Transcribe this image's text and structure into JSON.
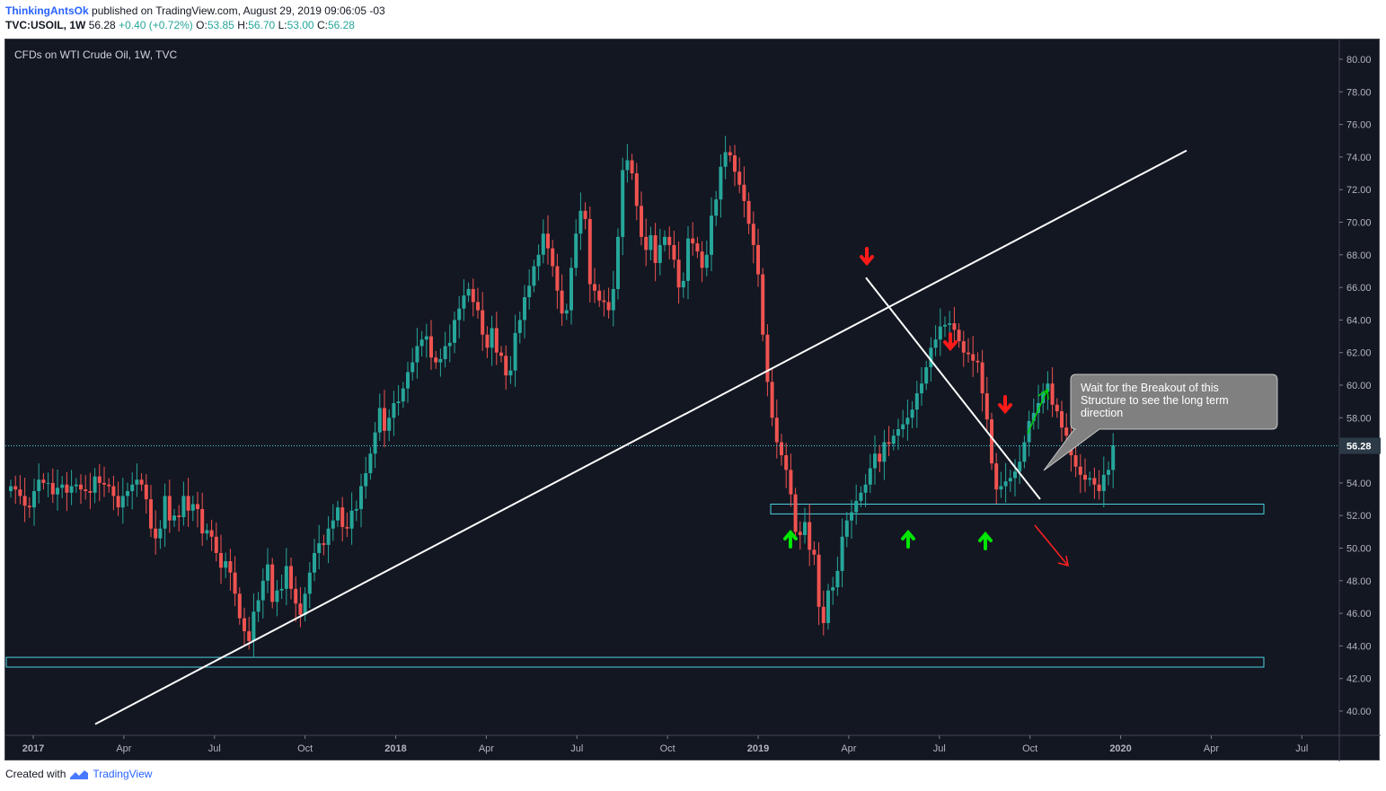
{
  "header": {
    "author": "ThinkingAntsOk",
    "published_text": "published on TradingView.com, August 29, 2019 09:06:05 -03",
    "symbol_line": "TVC:USOIL, 1W",
    "last": "56.28",
    "change": "+0.40 (+0.72%)",
    "o_label": "O:",
    "o_value": "53.85",
    "h_label": "H:",
    "h_value": "56.70",
    "l_label": "L:",
    "l_value": "53.00",
    "c_label": "C:",
    "c_value": "56.28"
  },
  "footer": {
    "created_with": "Created with",
    "brand": "TradingView"
  },
  "chart_data": {
    "type": "candlestick",
    "title": "CFDs on WTI Crude Oil, 1W, TVC",
    "last_price_label": "56.28",
    "y_ticks": [
      "80.00",
      "78.00",
      "76.00",
      "74.00",
      "72.00",
      "70.00",
      "68.00",
      "66.00",
      "64.00",
      "62.00",
      "60.00",
      "58.00",
      "56.00",
      "54.00",
      "52.00",
      "50.00",
      "48.00",
      "46.00",
      "44.00",
      "42.00",
      "40.00"
    ],
    "ylim": [
      39,
      80.9
    ],
    "x_ticks": [
      "2017",
      "Apr",
      "Jul",
      "Oct",
      "2018",
      "Apr",
      "Jul",
      "Oct",
      "2019",
      "Apr",
      "Jul",
      "Oct",
      "2020",
      "Apr",
      "Jul"
    ],
    "annotation": "Wait for the Breakout of this Structure to see the long term direction",
    "colors": {
      "up": "#26a69a",
      "down": "#ef5350",
      "line": "#ffffff",
      "zone": "#4dd0e1",
      "arrow_up": "#00e600",
      "arrow_down": "#ff1a1a",
      "last_price": "#4dd0e1"
    },
    "candles_close": [
      53.8,
      53.6,
      53.2,
      52.6,
      52.5,
      53.5,
      54.2,
      54.0,
      54.0,
      53.3,
      53.7,
      53.9,
      53.4,
      53.8,
      53.9,
      53.6,
      53.5,
      53.4,
      54.4,
      54.0,
      53.9,
      53.8,
      53.2,
      52.5,
      53.2,
      53.5,
      53.9,
      54.2,
      53.9,
      53.0,
      51.2,
      50.6,
      51.2,
      53.2,
      51.7,
      52.0,
      51.9,
      53.2,
      52.3,
      52.7,
      52.4,
      50.9,
      51.1,
      50.7,
      49.7,
      48.8,
      49.2,
      48.5,
      47.2,
      45.7,
      44.9,
      44.3,
      46.1,
      46.8,
      48.0,
      49.0,
      46.7,
      47.4,
      47.5,
      48.9,
      47.5,
      46.6,
      45.9,
      47.2,
      48.5,
      49.7,
      50.3,
      50.2,
      51.2,
      51.7,
      52.5,
      51.3,
      51.2,
      52.3,
      52.4,
      53.8,
      54.6,
      55.8,
      57.1,
      58.6,
      57.2,
      58.0,
      58.9,
      59.0,
      59.8,
      60.8,
      61.4,
      62.4,
      62.8,
      63.0,
      61.7,
      61.4,
      61.6,
      62.4,
      62.6,
      64.0,
      64.7,
      65.5,
      65.9,
      65.1,
      64.6,
      63.1,
      62.3,
      63.5,
      62.0,
      61.8,
      60.6,
      60.9,
      63.2,
      64.0,
      65.4,
      66.1,
      67.3,
      68.0,
      69.3,
      68.4,
      67.3,
      65.8,
      64.4,
      64.6,
      67.2,
      69.3,
      70.7,
      70.2,
      66.2,
      65.8,
      65.2,
      65.1,
      64.6,
      65.9,
      69.1,
      73.2,
      73.8,
      73.0,
      71.0,
      69.1,
      68.3,
      69.2,
      67.5,
      68.6,
      69.1,
      68.6,
      67.7,
      66.0,
      66.4,
      69.0,
      68.7,
      68.2,
      67.2,
      68.0,
      70.4,
      71.4,
      73.4,
      74.3,
      74.1,
      73.1,
      72.3,
      71.3,
      69.9,
      68.6,
      66.8,
      63.1,
      60.2,
      58.0,
      56.5,
      55.7,
      54.8,
      53.3,
      51.0,
      50.8,
      51.6,
      49.9,
      49.6,
      46.4,
      45.4,
      47.4,
      47.6,
      48.6,
      50.7,
      51.7,
      52.2,
      52.9,
      53.4,
      53.9,
      54.9,
      55.8,
      55.3,
      56.5,
      56.4,
      56.9,
      57.3,
      57.6,
      58.0,
      58.5,
      59.5,
      60.1,
      61.1,
      62.3,
      62.8,
      63.6,
      63.7,
      63.8,
      63.4,
      62.7,
      62.0,
      61.9,
      61.5,
      61.4,
      59.5,
      57.9,
      55.2,
      53.6,
      53.8,
      54.1,
      54.3,
      54.7,
      55.3,
      56.5,
      57.8,
      58.3,
      58.9,
      59.6,
      60.1,
      58.8,
      58.4,
      57.4,
      56.9,
      55.7,
      55.0,
      54.5,
      54.2,
      54.3,
      53.9,
      53.5,
      54.5,
      54.8,
      56.3
    ]
  }
}
